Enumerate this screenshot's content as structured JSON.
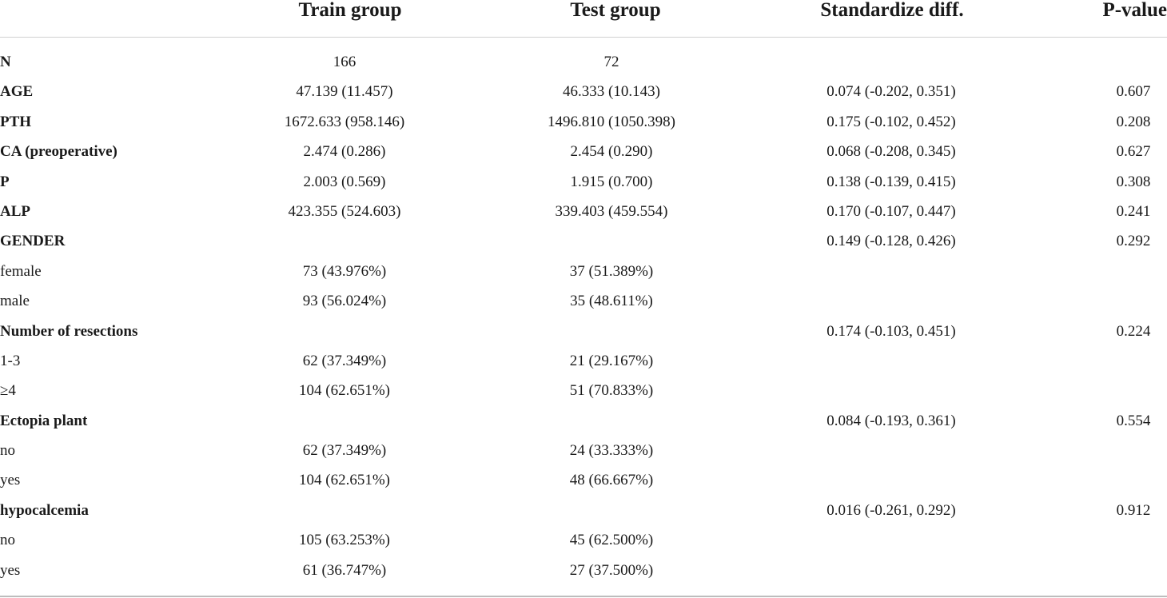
{
  "table": {
    "headers": [
      "",
      "Train group",
      "Test group",
      "Standardize diff.",
      "P-value"
    ],
    "rows": [
      {
        "label": "N",
        "bold": true,
        "train": "166",
        "test": "72",
        "std": "",
        "p": ""
      },
      {
        "label": "AGE",
        "bold": true,
        "train": "47.139 (11.457)",
        "test": "46.333 (10.143)",
        "std": "0.074 (-0.202, 0.351)",
        "p": "0.607"
      },
      {
        "label": "PTH",
        "bold": true,
        "train": "1672.633 (958.146)",
        "test": "1496.810 (1050.398)",
        "std": "0.175 (-0.102, 0.452)",
        "p": "0.208"
      },
      {
        "label": "CA (preoperative)",
        "bold": true,
        "train": "2.474 (0.286)",
        "test": "2.454 (0.290)",
        "std": "0.068 (-0.208, 0.345)",
        "p": "0.627"
      },
      {
        "label": "P",
        "bold": true,
        "train": "2.003 (0.569)",
        "test": "1.915 (0.700)",
        "std": "0.138 (-0.139, 0.415)",
        "p": "0.308"
      },
      {
        "label": "ALP",
        "bold": true,
        "train": "423.355 (524.603)",
        "test": "339.403 (459.554)",
        "std": "0.170 (-0.107, 0.447)",
        "p": "0.241"
      },
      {
        "label": "GENDER",
        "bold": true,
        "train": "",
        "test": "",
        "std": "0.149 (-0.128, 0.426)",
        "p": "0.292"
      },
      {
        "label": "female",
        "bold": false,
        "train": "73 (43.976%)",
        "test": "37 (51.389%)",
        "std": "",
        "p": ""
      },
      {
        "label": "male",
        "bold": false,
        "train": "93 (56.024%)",
        "test": "35 (48.611%)",
        "std": "",
        "p": ""
      },
      {
        "label": "Number of resections",
        "bold": true,
        "train": "",
        "test": "",
        "std": "0.174 (-0.103, 0.451)",
        "p": "0.224"
      },
      {
        "label": "1-3",
        "bold": false,
        "train": "62 (37.349%)",
        "test": "21 (29.167%)",
        "std": "",
        "p": ""
      },
      {
        "label": "≥4",
        "bold": false,
        "train": "104 (62.651%)",
        "test": "51 (70.833%)",
        "std": "",
        "p": ""
      },
      {
        "label": "Ectopia plant",
        "bold": true,
        "train": "",
        "test": "",
        "std": "0.084 (-0.193, 0.361)",
        "p": "0.554"
      },
      {
        "label": "no",
        "bold": false,
        "train": "62 (37.349%)",
        "test": "24 (33.333%)",
        "std": "",
        "p": ""
      },
      {
        "label": "yes",
        "bold": false,
        "train": "104 (62.651%)",
        "test": "48 (66.667%)",
        "std": "",
        "p": ""
      },
      {
        "label": "hypocalcemia",
        "bold": true,
        "train": "",
        "test": "",
        "std": "0.016 (-0.261, 0.292)",
        "p": "0.912"
      },
      {
        "label": "no",
        "bold": false,
        "train": "105 (63.253%)",
        "test": "45 (62.500%)",
        "std": "",
        "p": ""
      },
      {
        "label": "yes",
        "bold": false,
        "train": "61 (36.747%)",
        "test": "27 (37.500%)",
        "std": "",
        "p": ""
      }
    ]
  }
}
